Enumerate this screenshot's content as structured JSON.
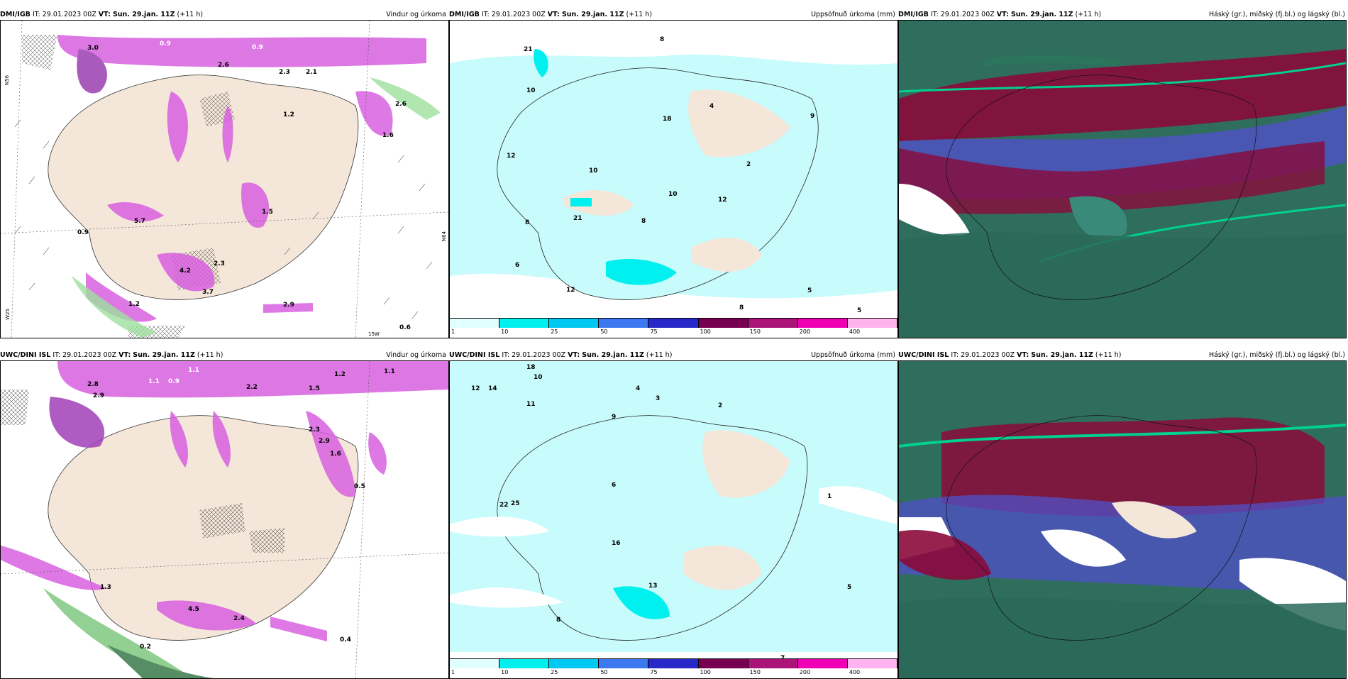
{
  "panels": [
    {
      "model": "DMI/IGB",
      "it": "IT: 29.01.2023 00Z",
      "vt_label": "VT:",
      "vt": "Sun. 29.jan. 11Z",
      "lead": "(+11 h)",
      "title": "Vindur og úrkoma"
    },
    {
      "model": "DMI/IGB",
      "it": "IT: 29.01.2023 00Z",
      "vt_label": "VT:",
      "vt": "Sun. 29.jan. 11Z",
      "lead": "(+11 h)",
      "title": "Uppsöfnuð úrkoma (mm)"
    },
    {
      "model": "DMI/IGB",
      "it": "IT: 29.01.2023 00Z",
      "vt_label": "VT:",
      "vt": "Sun. 29.jan. 11Z",
      "lead": "(+11 h)",
      "title": "Háský (gr.), miðský (fj.bl.) og lágský (bl.)"
    },
    {
      "model": "UWC/DINI ISL",
      "it": "IT: 29.01.2023 00Z",
      "vt_label": "VT:",
      "vt": "Sun. 29.jan. 11Z",
      "lead": "(+11 h)",
      "title": "Vindur og úrkoma"
    },
    {
      "model": "UWC/DINI ISL",
      "it": "IT: 29.01.2023 00Z",
      "vt_label": "VT:",
      "vt": "Sun. 29.jan. 11Z",
      "lead": "(+11 h)",
      "title": "Uppsöfnuð úrkoma (mm)"
    },
    {
      "model": "UWC/DINI ISL",
      "it": "IT: 29.01.2023 00Z",
      "vt_label": "VT:",
      "vt": "Sun. 29.jan. 11Z",
      "lead": "(+11 h)",
      "title": "Háský (gr.), miðský (fj.bl.) og lágský (bl.)"
    }
  ],
  "colorbar": {
    "labels": [
      "1",
      "10",
      "25",
      "50",
      "75",
      "100",
      "150",
      "200",
      "400"
    ],
    "colors": [
      "#e0ffff",
      "#00f0f0",
      "#00c8f0",
      "#3c78f0",
      "#2828c8",
      "#780050",
      "#aa1478",
      "#f000b4",
      "#ffb4f0"
    ]
  },
  "wind_labels_top": [
    "3.0",
    "0.9",
    "0.9",
    "2.6",
    "2.3",
    "2.1",
    "1.2",
    "2.6",
    "1.6",
    "1.5",
    "5.7",
    "0.9",
    "4.2",
    "2.3",
    "3.7",
    "2.9",
    "0.6",
    "1.2"
  ],
  "wind_labels_bottom": [
    "2.8",
    "2.9",
    "1.1",
    "0.9",
    "1.1",
    "2.2",
    "1.5",
    "1.2",
    "2.3",
    "2.9",
    "1.6",
    "0.5",
    "4.5",
    "2.4",
    "0.2",
    "0.4",
    "1.3",
    "1.1"
  ],
  "precip_labels_top": [
    "8",
    "21",
    "10",
    "12",
    "10",
    "18",
    "4",
    "9",
    "2",
    "12",
    "21",
    "8",
    "8",
    "12",
    "5",
    "5",
    "8",
    "10",
    "6"
  ],
  "precip_labels_bottom": [
    "18",
    "12",
    "14",
    "11",
    "10",
    "9",
    "6",
    "4",
    "3",
    "2",
    "1",
    "13",
    "22",
    "25",
    "16",
    "7",
    "8",
    "5"
  ],
  "graticule": {
    "lat1": "N56",
    "lat2": "N64",
    "lon1": "W25",
    "lon2": "15W"
  },
  "colors": {
    "land": "#f4e6d8",
    "ocean_precip": "#c8fbfb",
    "high_cloud": "#00d090",
    "mid_cloud": "#8b0a3a",
    "low_cloud": "#5050c8",
    "wind_precip": "#d860e0"
  }
}
